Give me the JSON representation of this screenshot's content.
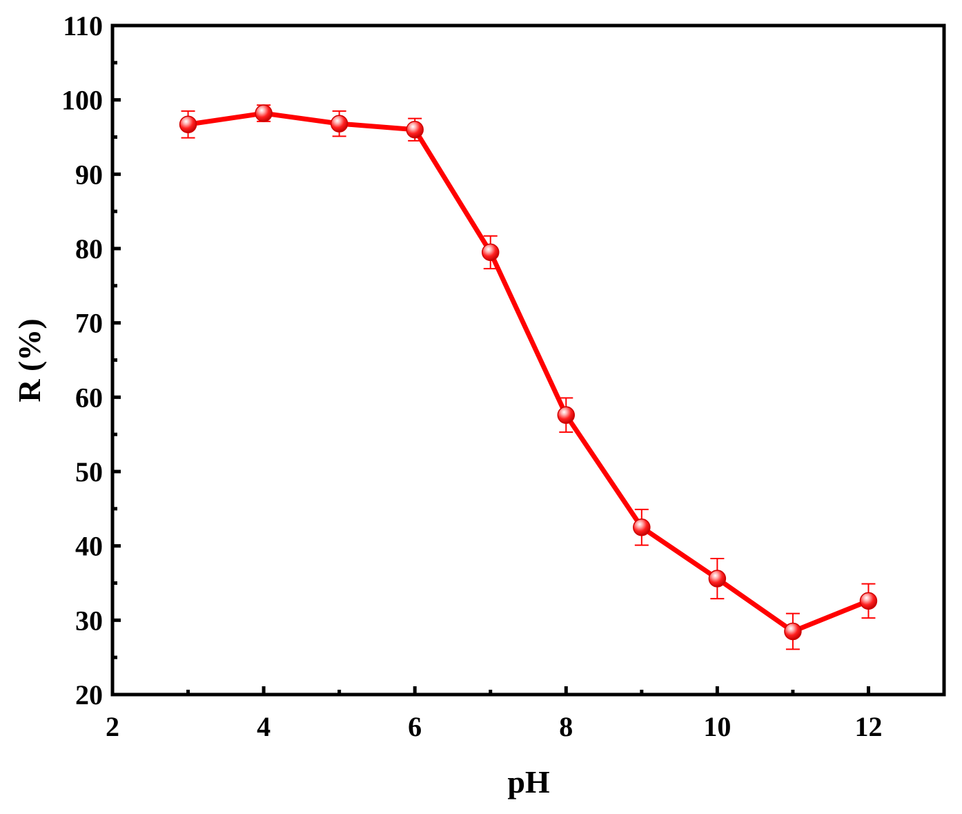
{
  "chart_data": {
    "type": "line",
    "title": "",
    "xlabel": "pH",
    "ylabel": "R (%)",
    "xlim": [
      2,
      13
    ],
    "ylim": [
      20,
      110
    ],
    "xticks": [
      2,
      4,
      6,
      8,
      10,
      12
    ],
    "xminor": [
      3,
      5,
      7,
      9,
      11
    ],
    "yticks": [
      20,
      30,
      40,
      50,
      60,
      70,
      80,
      90,
      100,
      110
    ],
    "yminor": [
      25,
      35,
      45,
      55,
      65,
      75,
      85,
      95,
      105
    ],
    "grid": false,
    "legend": "none",
    "series": [
      {
        "color": "#ff0000",
        "x": [
          3,
          4,
          5,
          6,
          7,
          8,
          9,
          10,
          11,
          12
        ],
        "y": [
          96.7,
          98.2,
          96.8,
          96.0,
          79.5,
          57.6,
          42.5,
          35.6,
          28.5,
          32.6
        ],
        "err": [
          1.8,
          1.1,
          1.7,
          1.5,
          2.2,
          2.3,
          2.4,
          2.7,
          2.4,
          2.3
        ]
      }
    ]
  }
}
